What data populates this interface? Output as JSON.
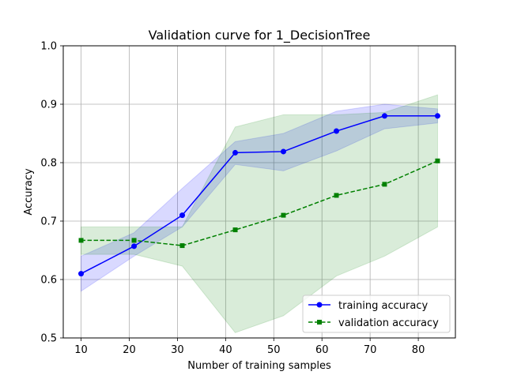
{
  "chart_data": {
    "type": "line",
    "title": "Validation curve for 1_DecisionTree",
    "xlabel": "Number of training samples",
    "ylabel": "Accuracy",
    "xlim": [
      6.3,
      87.7
    ],
    "ylim": [
      0.5,
      1.0
    ],
    "xticks": [
      "10",
      "20",
      "30",
      "40",
      "50",
      "60",
      "70",
      "80"
    ],
    "yticks": [
      "0.5",
      "0.6",
      "0.7",
      "0.8",
      "0.9",
      "1.0"
    ],
    "grid": true,
    "legend_position": "lower right",
    "x": [
      10,
      21,
      31,
      42,
      52,
      63,
      73,
      84
    ],
    "series": [
      {
        "name": "training accuracy",
        "color": "#0000ff",
        "marker": "circle",
        "linestyle": "solid",
        "values": [
          0.61,
          0.657,
          0.71,
          0.817,
          0.819,
          0.854,
          0.88,
          0.88
        ],
        "band_lower": [
          0.58,
          0.64,
          0.69,
          0.797,
          0.786,
          0.82,
          0.858,
          0.868
        ],
        "band_upper": [
          0.64,
          0.68,
          0.756,
          0.836,
          0.85,
          0.888,
          0.9,
          0.892
        ],
        "band_color": "#0000ff"
      },
      {
        "name": "validation accuracy",
        "color": "#008000",
        "marker": "square",
        "linestyle": "dashed",
        "values": [
          0.667,
          0.667,
          0.658,
          0.685,
          0.71,
          0.744,
          0.763,
          0.803
        ],
        "band_lower": [
          0.643,
          0.643,
          0.623,
          0.509,
          0.538,
          0.606,
          0.64,
          0.69
        ],
        "band_upper": [
          0.69,
          0.69,
          0.69,
          0.861,
          0.882,
          0.882,
          0.886,
          0.916
        ],
        "band_color": "#008000"
      }
    ]
  }
}
